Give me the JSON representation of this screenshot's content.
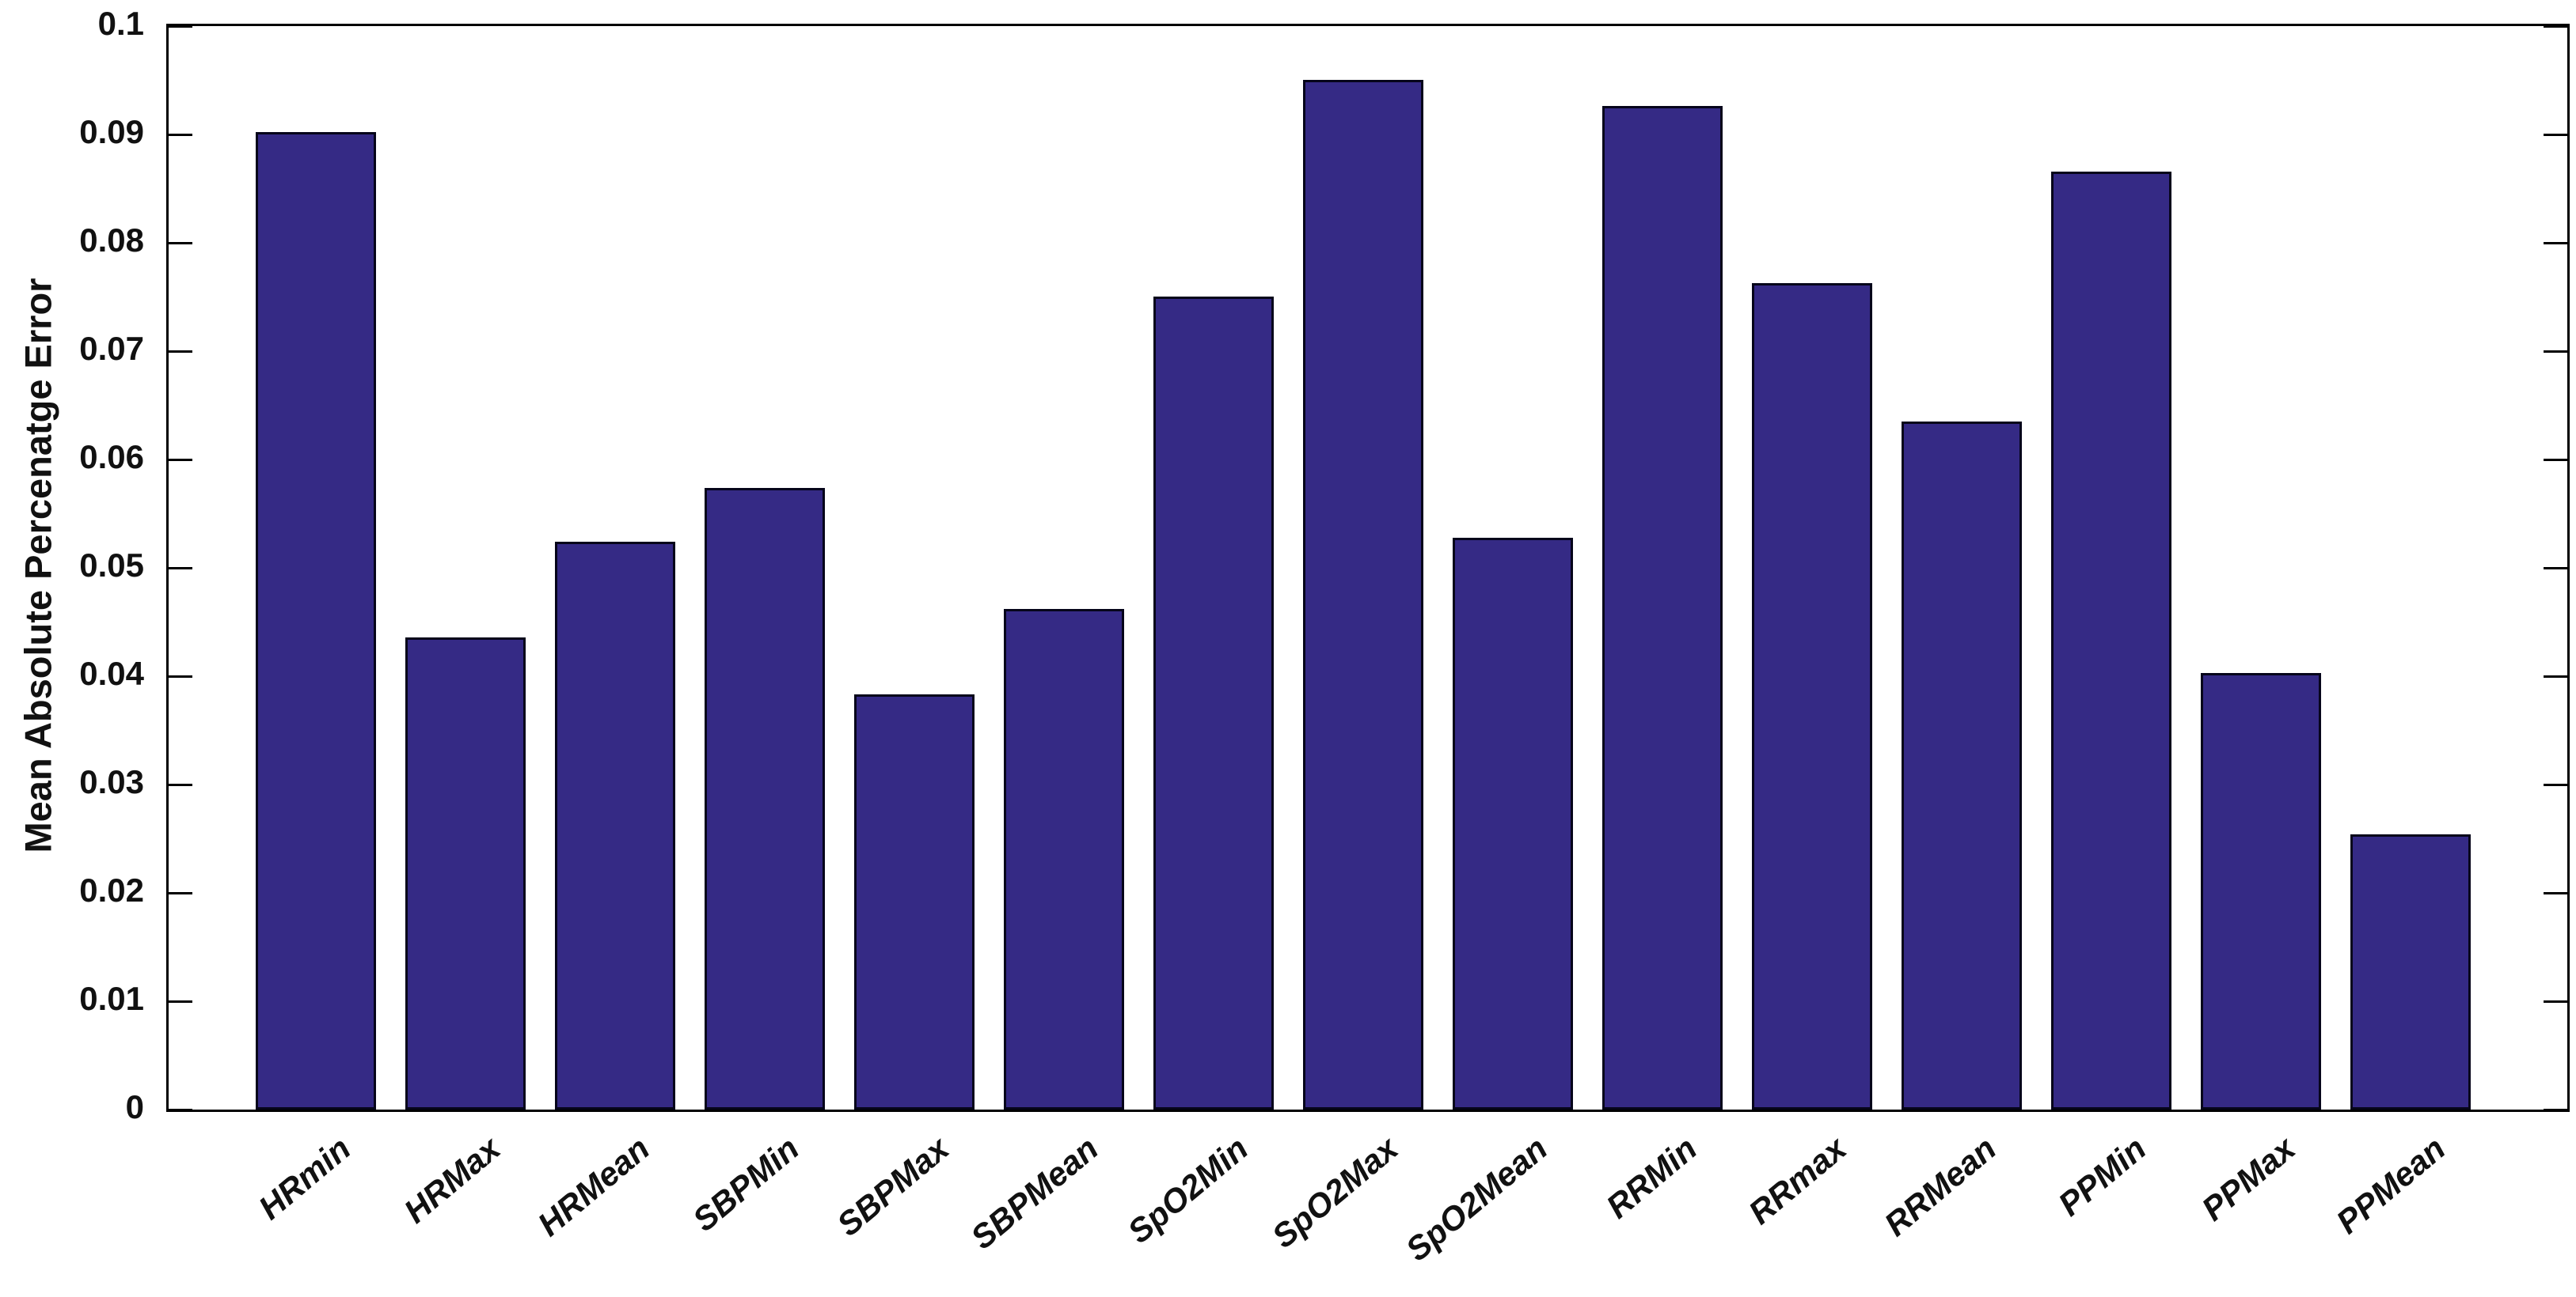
{
  "figure": {
    "background": "#ffffff",
    "axis_color": "#000000",
    "text_color": "#111111"
  },
  "chart_data": {
    "type": "bar",
    "title": "",
    "xlabel": "",
    "ylabel": "Mean Absolute Percenatge Error",
    "categories": [
      "HRmin",
      "HRMax",
      "HRMean",
      "SBPMin",
      "SBPMax",
      "SBPMean",
      "SpO2Min",
      "SpO2Max",
      "SpO2Mean",
      "RRMin",
      "RRmax",
      "RRMean",
      "PPMin",
      "PPMax",
      "PPMean"
    ],
    "values": [
      0.0902,
      0.0436,
      0.0524,
      0.0574,
      0.0383,
      0.0462,
      0.075,
      0.095,
      0.0528,
      0.0926,
      0.0763,
      0.0635,
      0.0866,
      0.0403,
      0.0254
    ],
    "ylim": [
      0,
      0.1
    ],
    "yticks": [
      0,
      0.01,
      0.02,
      0.03,
      0.04,
      0.05,
      0.06,
      0.07,
      0.08,
      0.09,
      0.1
    ],
    "ytick_labels": [
      "0",
      "0.01",
      "0.02",
      "0.03",
      "0.04",
      "0.05",
      "0.06",
      "0.07",
      "0.08",
      "0.09",
      "0.1"
    ],
    "grid": false,
    "bar_color": "#352A85",
    "bar_edge_color": "#06051a",
    "x_tick_label_rotation_deg": -40
  }
}
